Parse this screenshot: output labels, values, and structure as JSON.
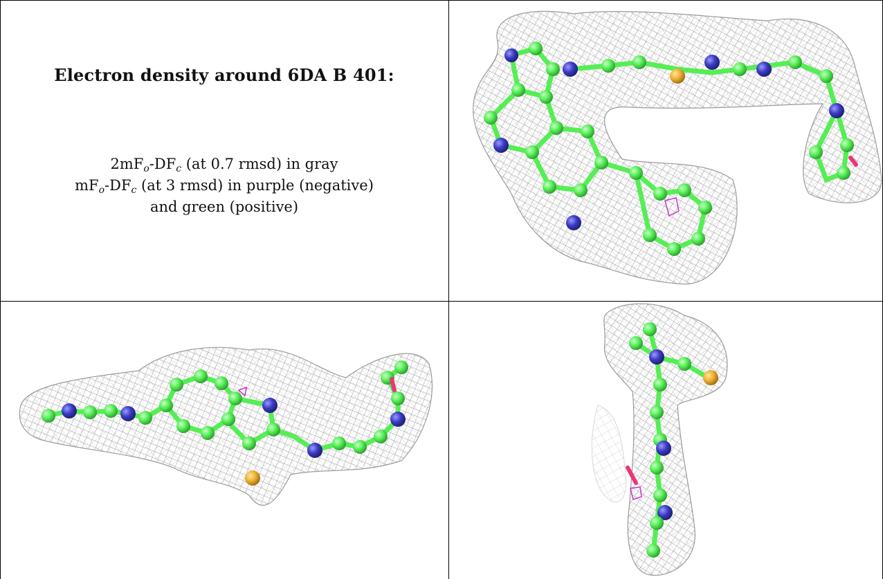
{
  "caption": {
    "title": "Electron density around 6DA B 401:",
    "line1": {
      "a": "2mF",
      "a_sub": "o",
      "b": "-DF",
      "b_sub": "c",
      "c": " (at 0.7 rmsd) in gray"
    },
    "line2": {
      "a": "mF",
      "a_sub": "o",
      "b": "-DF",
      "b_sub": "c",
      "c": " (at 3 rmsd) in purple (negative)"
    },
    "line3": "and green (positive)"
  },
  "colors": {
    "mesh": "#9a9a9a",
    "carbon": "#55ee55",
    "nitrogen": "#3b3bc4",
    "sulfur": "#f0b030",
    "oxygen": "#ee3377",
    "negative_density": "#cc33cc",
    "grid_line": "#000000"
  },
  "panels": [
    {
      "name": "view-top-right",
      "atom_icon": "ball-and-stick-icon"
    },
    {
      "name": "view-bottom-left",
      "atom_icon": "ball-and-stick-icon"
    },
    {
      "name": "view-bottom-right",
      "atom_icon": "ball-and-stick-icon"
    }
  ]
}
